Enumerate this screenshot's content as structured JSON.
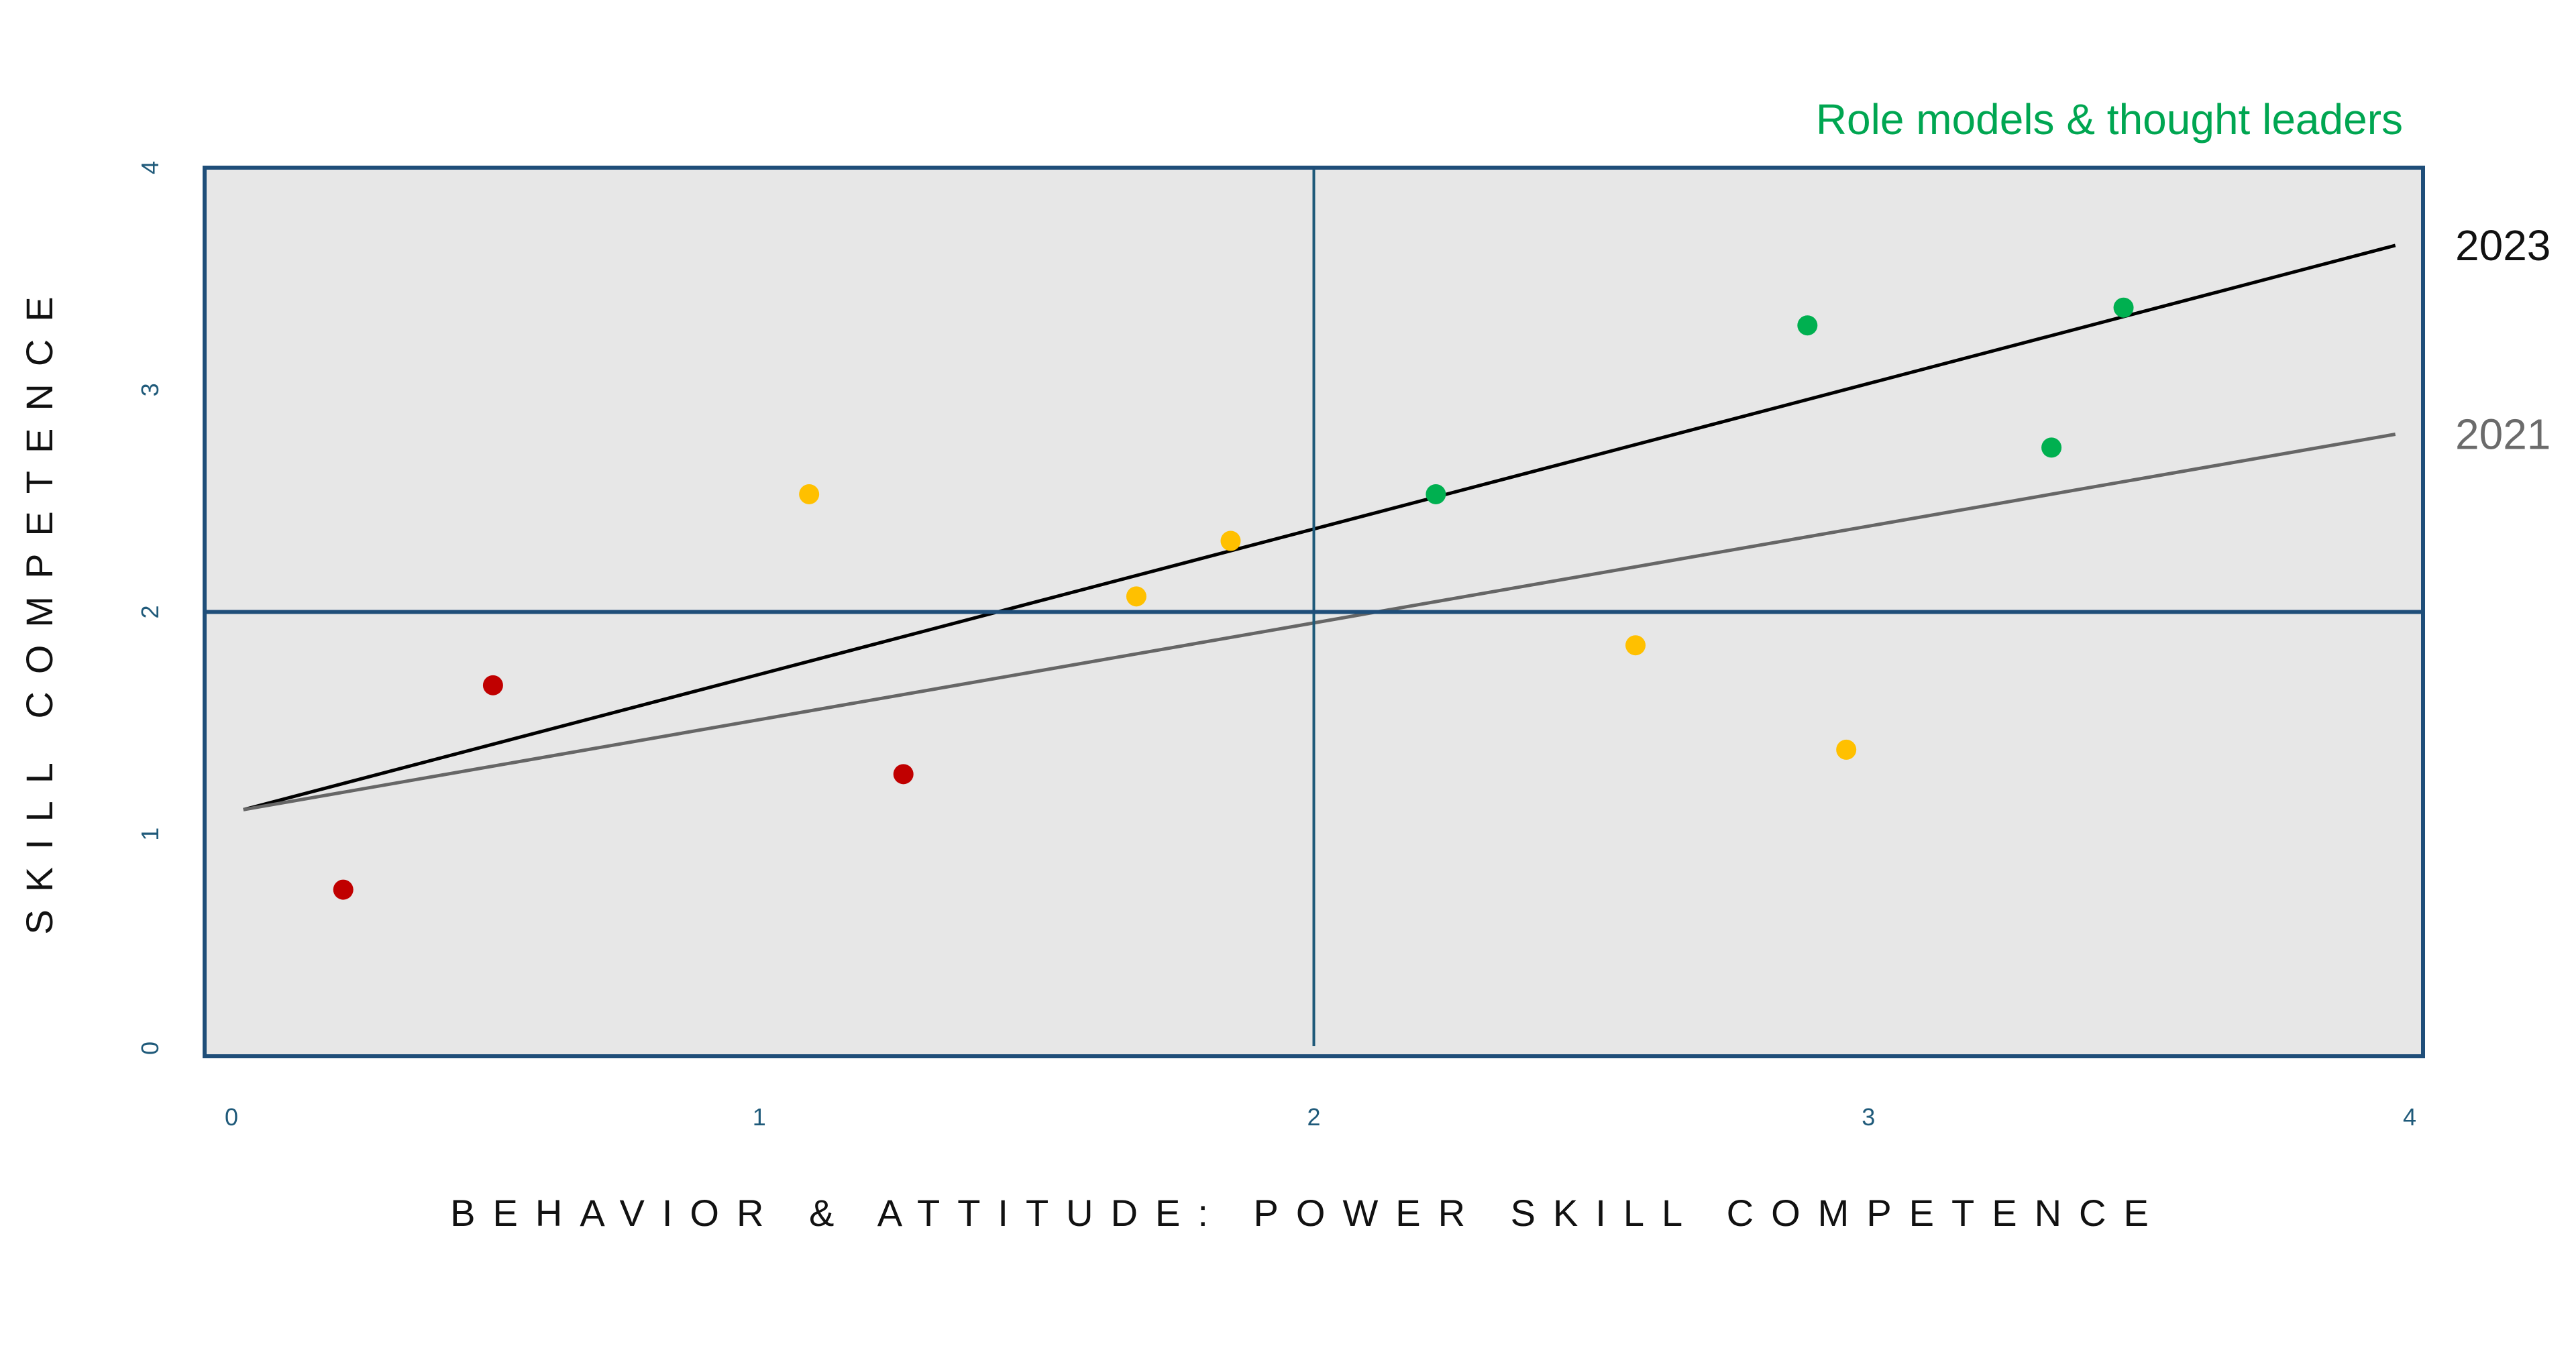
{
  "chart_data": {
    "type": "scatter",
    "annotation": "Role models & thought leaders",
    "xlabel": "BEHAVIOR & ATTITUDE: POWER SKILL COMPETENCE",
    "ylabel": "SKILL COMPETENCE",
    "xlim": [
      0,
      4
    ],
    "ylim": [
      0,
      4
    ],
    "x_ticks": [
      "0",
      "1",
      "2",
      "3",
      "4"
    ],
    "y_ticks": [
      "0",
      "1",
      "2",
      "3",
      "4"
    ],
    "quadrant_dividers": {
      "x": 2,
      "y": 2
    },
    "grid": false,
    "background": "#e7e7e7",
    "frame_color": "#1f4e79",
    "points": [
      {
        "x": 0.25,
        "y": 0.75,
        "color": "#c00000"
      },
      {
        "x": 0.52,
        "y": 1.67,
        "color": "#c00000"
      },
      {
        "x": 1.26,
        "y": 1.27,
        "color": "#c00000"
      },
      {
        "x": 1.09,
        "y": 2.53,
        "color": "#ffc000"
      },
      {
        "x": 1.68,
        "y": 2.07,
        "color": "#ffc000"
      },
      {
        "x": 1.85,
        "y": 2.32,
        "color": "#ffc000"
      },
      {
        "x": 2.58,
        "y": 1.85,
        "color": "#ffc000"
      },
      {
        "x": 2.96,
        "y": 1.38,
        "color": "#ffc000"
      },
      {
        "x": 2.22,
        "y": 2.53,
        "color": "#00b050"
      },
      {
        "x": 2.89,
        "y": 3.29,
        "color": "#00b050"
      },
      {
        "x": 3.33,
        "y": 2.74,
        "color": "#00b050"
      },
      {
        "x": 3.46,
        "y": 3.37,
        "color": "#00b050"
      }
    ],
    "lines": [
      {
        "name": "2023",
        "x": [
          0.07,
          3.95
        ],
        "y": [
          1.11,
          3.65
        ],
        "color": "#000000",
        "label_color": "#111111"
      },
      {
        "name": "2021",
        "x": [
          0.07,
          3.95
        ],
        "y": [
          1.11,
          2.8
        ],
        "color": "#666666",
        "label_color": "#6b6b6b"
      }
    ],
    "annotation_color": "#00a651",
    "tick_color": "#1f5a7a"
  }
}
